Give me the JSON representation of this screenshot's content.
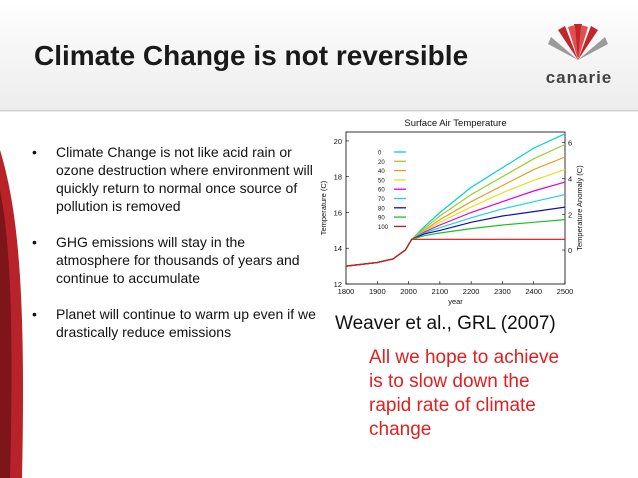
{
  "slide": {
    "title": "Climate Change is not reversible",
    "logo_text": "canarie",
    "bullets": [
      "Climate Change is not like acid rain or ozone destruction where environment will quickly return to normal once source of pollution is removed",
      "GHG emissions will stay in the atmosphere for thousands of years and continue to accumulate",
      "Planet will continue to warm up even if we drastically reduce emissions"
    ],
    "citation": "Weaver et al., GRL (2007)",
    "callout": "All we hope to achieve is to slow down the rapid rate of climate change",
    "colors": {
      "accent": "#c0262a",
      "callout": "#e02020"
    }
  },
  "chart_data": {
    "type": "line",
    "title": "Surface Air Temperature",
    "xlabel": "year",
    "ylabel": "Temperature (C)",
    "ylabel_right": "Temperature Anomaly (C)",
    "xlim": [
      1800,
      2500
    ],
    "ylim": [
      12,
      20.5
    ],
    "xticks": [
      "1800",
      "1900",
      "2000",
      "2100",
      "2200",
      "2300",
      "2400",
      "2500"
    ],
    "yticks": [
      "12",
      "14",
      "16",
      "18",
      "20"
    ],
    "right_ticks": [
      "0",
      "2",
      "4",
      "6"
    ],
    "right_offset": 13.9,
    "x": [
      1800,
      1900,
      1950,
      1990,
      2010,
      2050,
      2100,
      2200,
      2300,
      2400,
      2500
    ],
    "series": [
      {
        "name": "0",
        "color": "#00d4c8",
        "values": [
          13.0,
          13.2,
          13.4,
          13.9,
          14.5,
          15.2,
          16.0,
          17.4,
          18.5,
          19.6,
          20.4
        ]
      },
      {
        "name": "20",
        "color": "#9acd32",
        "values": [
          13.0,
          13.2,
          13.4,
          13.9,
          14.5,
          15.1,
          15.8,
          17.0,
          18.0,
          19.0,
          19.8
        ]
      },
      {
        "name": "40",
        "color": "#e0a020",
        "values": [
          13.0,
          13.2,
          13.4,
          13.9,
          14.5,
          15.0,
          15.6,
          16.6,
          17.5,
          18.4,
          19.1
        ]
      },
      {
        "name": "50",
        "color": "#e8e020",
        "values": [
          13.0,
          13.2,
          13.4,
          13.9,
          14.5,
          14.95,
          15.45,
          16.3,
          17.1,
          17.8,
          18.4
        ]
      },
      {
        "name": "60",
        "color": "#e000e0",
        "values": [
          13.0,
          13.2,
          13.4,
          13.9,
          14.5,
          14.9,
          15.3,
          16.0,
          16.6,
          17.2,
          17.7
        ]
      },
      {
        "name": "70",
        "color": "#20d0f0",
        "values": [
          13.0,
          13.2,
          13.4,
          13.9,
          14.5,
          14.85,
          15.15,
          15.7,
          16.2,
          16.6,
          17.0
        ]
      },
      {
        "name": "80",
        "color": "#1010b0",
        "values": [
          13.0,
          13.2,
          13.4,
          13.9,
          14.5,
          14.8,
          15.0,
          15.45,
          15.8,
          16.05,
          16.3
        ]
      },
      {
        "name": "90",
        "color": "#20c020",
        "values": [
          13.0,
          13.2,
          13.4,
          13.9,
          14.5,
          14.7,
          14.85,
          15.1,
          15.3,
          15.45,
          15.6
        ]
      },
      {
        "name": "100",
        "color": "#e01010",
        "values": [
          13.0,
          13.2,
          13.4,
          13.9,
          14.5,
          14.5,
          14.5,
          14.5,
          14.5,
          14.5,
          14.5
        ]
      }
    ]
  }
}
